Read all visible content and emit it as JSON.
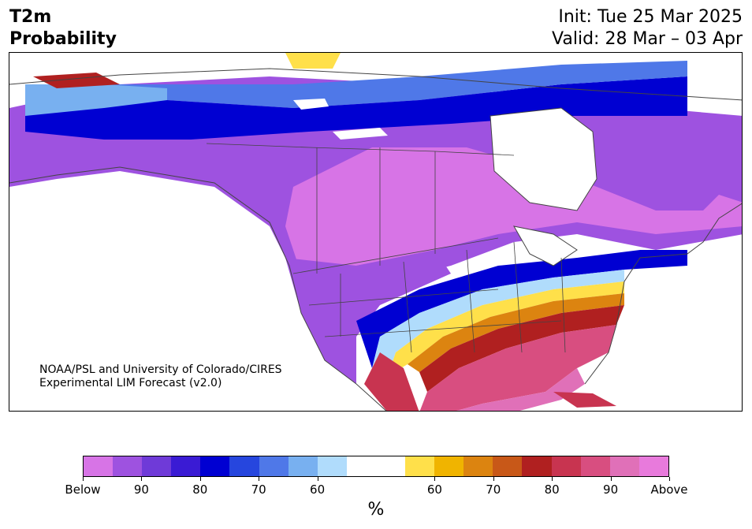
{
  "title": {
    "line1": "T2m",
    "line2": "Probability"
  },
  "info": {
    "init": "Init: Tue 25 Mar 2025",
    "valid": "Valid: 28 Mar – 03 Apr"
  },
  "credit": {
    "line1": "NOAA/PSL and University of Colorado/CIRES",
    "line2": "Experimental LIM Forecast (v2.0)"
  },
  "colorbar": {
    "colors": [
      "#d774e6",
      "#9e52e0",
      "#6f3ad8",
      "#3a1bd4",
      "#0000d2",
      "#2646de",
      "#4f78e8",
      "#78b0f0",
      "#b0dcfc",
      "#ffffff",
      "#ffffff",
      "#ffe04a",
      "#f0b400",
      "#dc8410",
      "#c85818",
      "#b02020",
      "#c83450",
      "#d84e80",
      "#e070b8",
      "#e87adc"
    ],
    "tick_labels": [
      "Below",
      "90",
      "80",
      "70",
      "60",
      "60",
      "70",
      "80",
      "90",
      "Above"
    ],
    "units": "%"
  },
  "legend_colors": {
    "below_deep": "#d774e6",
    "below_mid": "#6f3ad8",
    "below_strong": "#0000d2",
    "neutral": "#ffffff",
    "above_low": "#ffe04a",
    "above_mid": "#c85818",
    "above_high": "#e87adc"
  }
}
